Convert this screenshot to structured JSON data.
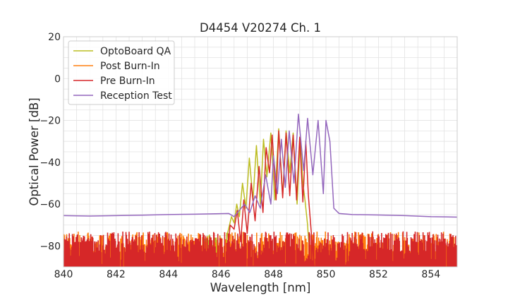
{
  "chart_data": {
    "type": "line",
    "title": "D4454 V20274 Ch. 1",
    "xlabel": "Wavelength [nm]",
    "ylabel": "Optical Power [dB]",
    "xlim": [
      840,
      855
    ],
    "ylim": [
      -90,
      20
    ],
    "xticks": [
      840,
      842,
      844,
      846,
      848,
      850,
      852,
      854
    ],
    "yticks": [
      20,
      0,
      -20,
      -40,
      -60,
      -80
    ],
    "xtick_labels": [
      "840",
      "842",
      "844",
      "846",
      "848",
      "850",
      "852",
      "854"
    ],
    "ytick_labels": [
      "20",
      "0",
      "−20",
      "−40",
      "−60",
      "−80"
    ],
    "grid": true,
    "legend_position": "top-left",
    "series": [
      {
        "name": "OptoBoard QA",
        "color": "#bcbd22",
        "noise": {
          "x_start": 845.4,
          "x_end": 846.25,
          "level": -80
        },
        "points": [
          [
            846.1,
            -90
          ],
          [
            846.25,
            -74
          ],
          [
            846.4,
            -66
          ],
          [
            846.5,
            -69
          ],
          [
            846.6,
            -60
          ],
          [
            846.7,
            -66
          ],
          [
            846.82,
            -50
          ],
          [
            846.95,
            -62
          ],
          [
            847.08,
            -38
          ],
          [
            847.22,
            -58
          ],
          [
            847.35,
            -32
          ],
          [
            847.5,
            -60
          ],
          [
            847.62,
            -29
          ],
          [
            847.75,
            -47
          ],
          [
            847.9,
            -26
          ],
          [
            848.05,
            -58
          ],
          [
            848.2,
            -24
          ],
          [
            848.35,
            -56
          ],
          [
            848.48,
            -25
          ],
          [
            848.62,
            -45
          ],
          [
            848.75,
            -26
          ],
          [
            848.9,
            -60
          ],
          [
            849.02,
            -29
          ],
          [
            849.12,
            -50
          ],
          [
            849.2,
            -58
          ],
          [
            849.3,
            -70
          ],
          [
            849.4,
            -90
          ]
        ]
      },
      {
        "name": "Post Burn-In",
        "color": "#ff7f0e",
        "noise": {
          "x_start": 840,
          "x_end": 855,
          "level": -80
        },
        "points": []
      },
      {
        "name": "Pre Burn-In",
        "color": "#d62728",
        "noise": {
          "x_start": 840,
          "x_end": 855,
          "level": -80
        },
        "points": [
          [
            846.2,
            -90
          ],
          [
            846.35,
            -70
          ],
          [
            846.5,
            -72
          ],
          [
            846.62,
            -63
          ],
          [
            846.75,
            -78
          ],
          [
            846.87,
            -58
          ],
          [
            847.0,
            -74
          ],
          [
            847.15,
            -50
          ],
          [
            847.3,
            -68
          ],
          [
            847.45,
            -42
          ],
          [
            847.6,
            -64
          ],
          [
            847.72,
            -33
          ],
          [
            847.85,
            -45
          ],
          [
            847.95,
            -27
          ],
          [
            848.1,
            -58
          ],
          [
            848.2,
            -25
          ],
          [
            848.35,
            -57
          ],
          [
            848.48,
            -26
          ],
          [
            848.62,
            -56
          ],
          [
            848.75,
            -27
          ],
          [
            848.88,
            -58
          ],
          [
            849.0,
            -28
          ],
          [
            849.12,
            -59
          ],
          [
            849.23,
            -30
          ],
          [
            849.33,
            -56
          ],
          [
            849.45,
            -75
          ],
          [
            849.55,
            -90
          ]
        ]
      },
      {
        "name": "Reception Test",
        "color": "#9467bd",
        "noise": null,
        "points": [
          [
            840,
            -65.5
          ],
          [
            841,
            -65.7
          ],
          [
            842,
            -65.5
          ],
          [
            843,
            -65.3
          ],
          [
            844,
            -65
          ],
          [
            845,
            -64.8
          ],
          [
            845.8,
            -64.6
          ],
          [
            846.3,
            -64.5
          ],
          [
            846.5,
            -66
          ],
          [
            846.7,
            -63
          ],
          [
            846.9,
            -60
          ],
          [
            847.1,
            -64
          ],
          [
            847.3,
            -56
          ],
          [
            847.5,
            -62
          ],
          [
            847.7,
            -46
          ],
          [
            847.9,
            -60
          ],
          [
            848.0,
            -37
          ],
          [
            848.15,
            -55
          ],
          [
            848.3,
            -29
          ],
          [
            848.45,
            -52
          ],
          [
            848.6,
            -25
          ],
          [
            848.78,
            -50
          ],
          [
            848.95,
            -17
          ],
          [
            849.15,
            -44
          ],
          [
            849.3,
            -19
          ],
          [
            849.5,
            -46
          ],
          [
            849.7,
            -20
          ],
          [
            849.9,
            -55
          ],
          [
            850.0,
            -20
          ],
          [
            850.15,
            -30
          ],
          [
            850.3,
            -62
          ],
          [
            850.5,
            -64.5
          ],
          [
            851,
            -65
          ],
          [
            852,
            -65.2
          ],
          [
            853,
            -65.5
          ],
          [
            854,
            -66
          ],
          [
            855,
            -66.2
          ]
        ]
      }
    ]
  }
}
